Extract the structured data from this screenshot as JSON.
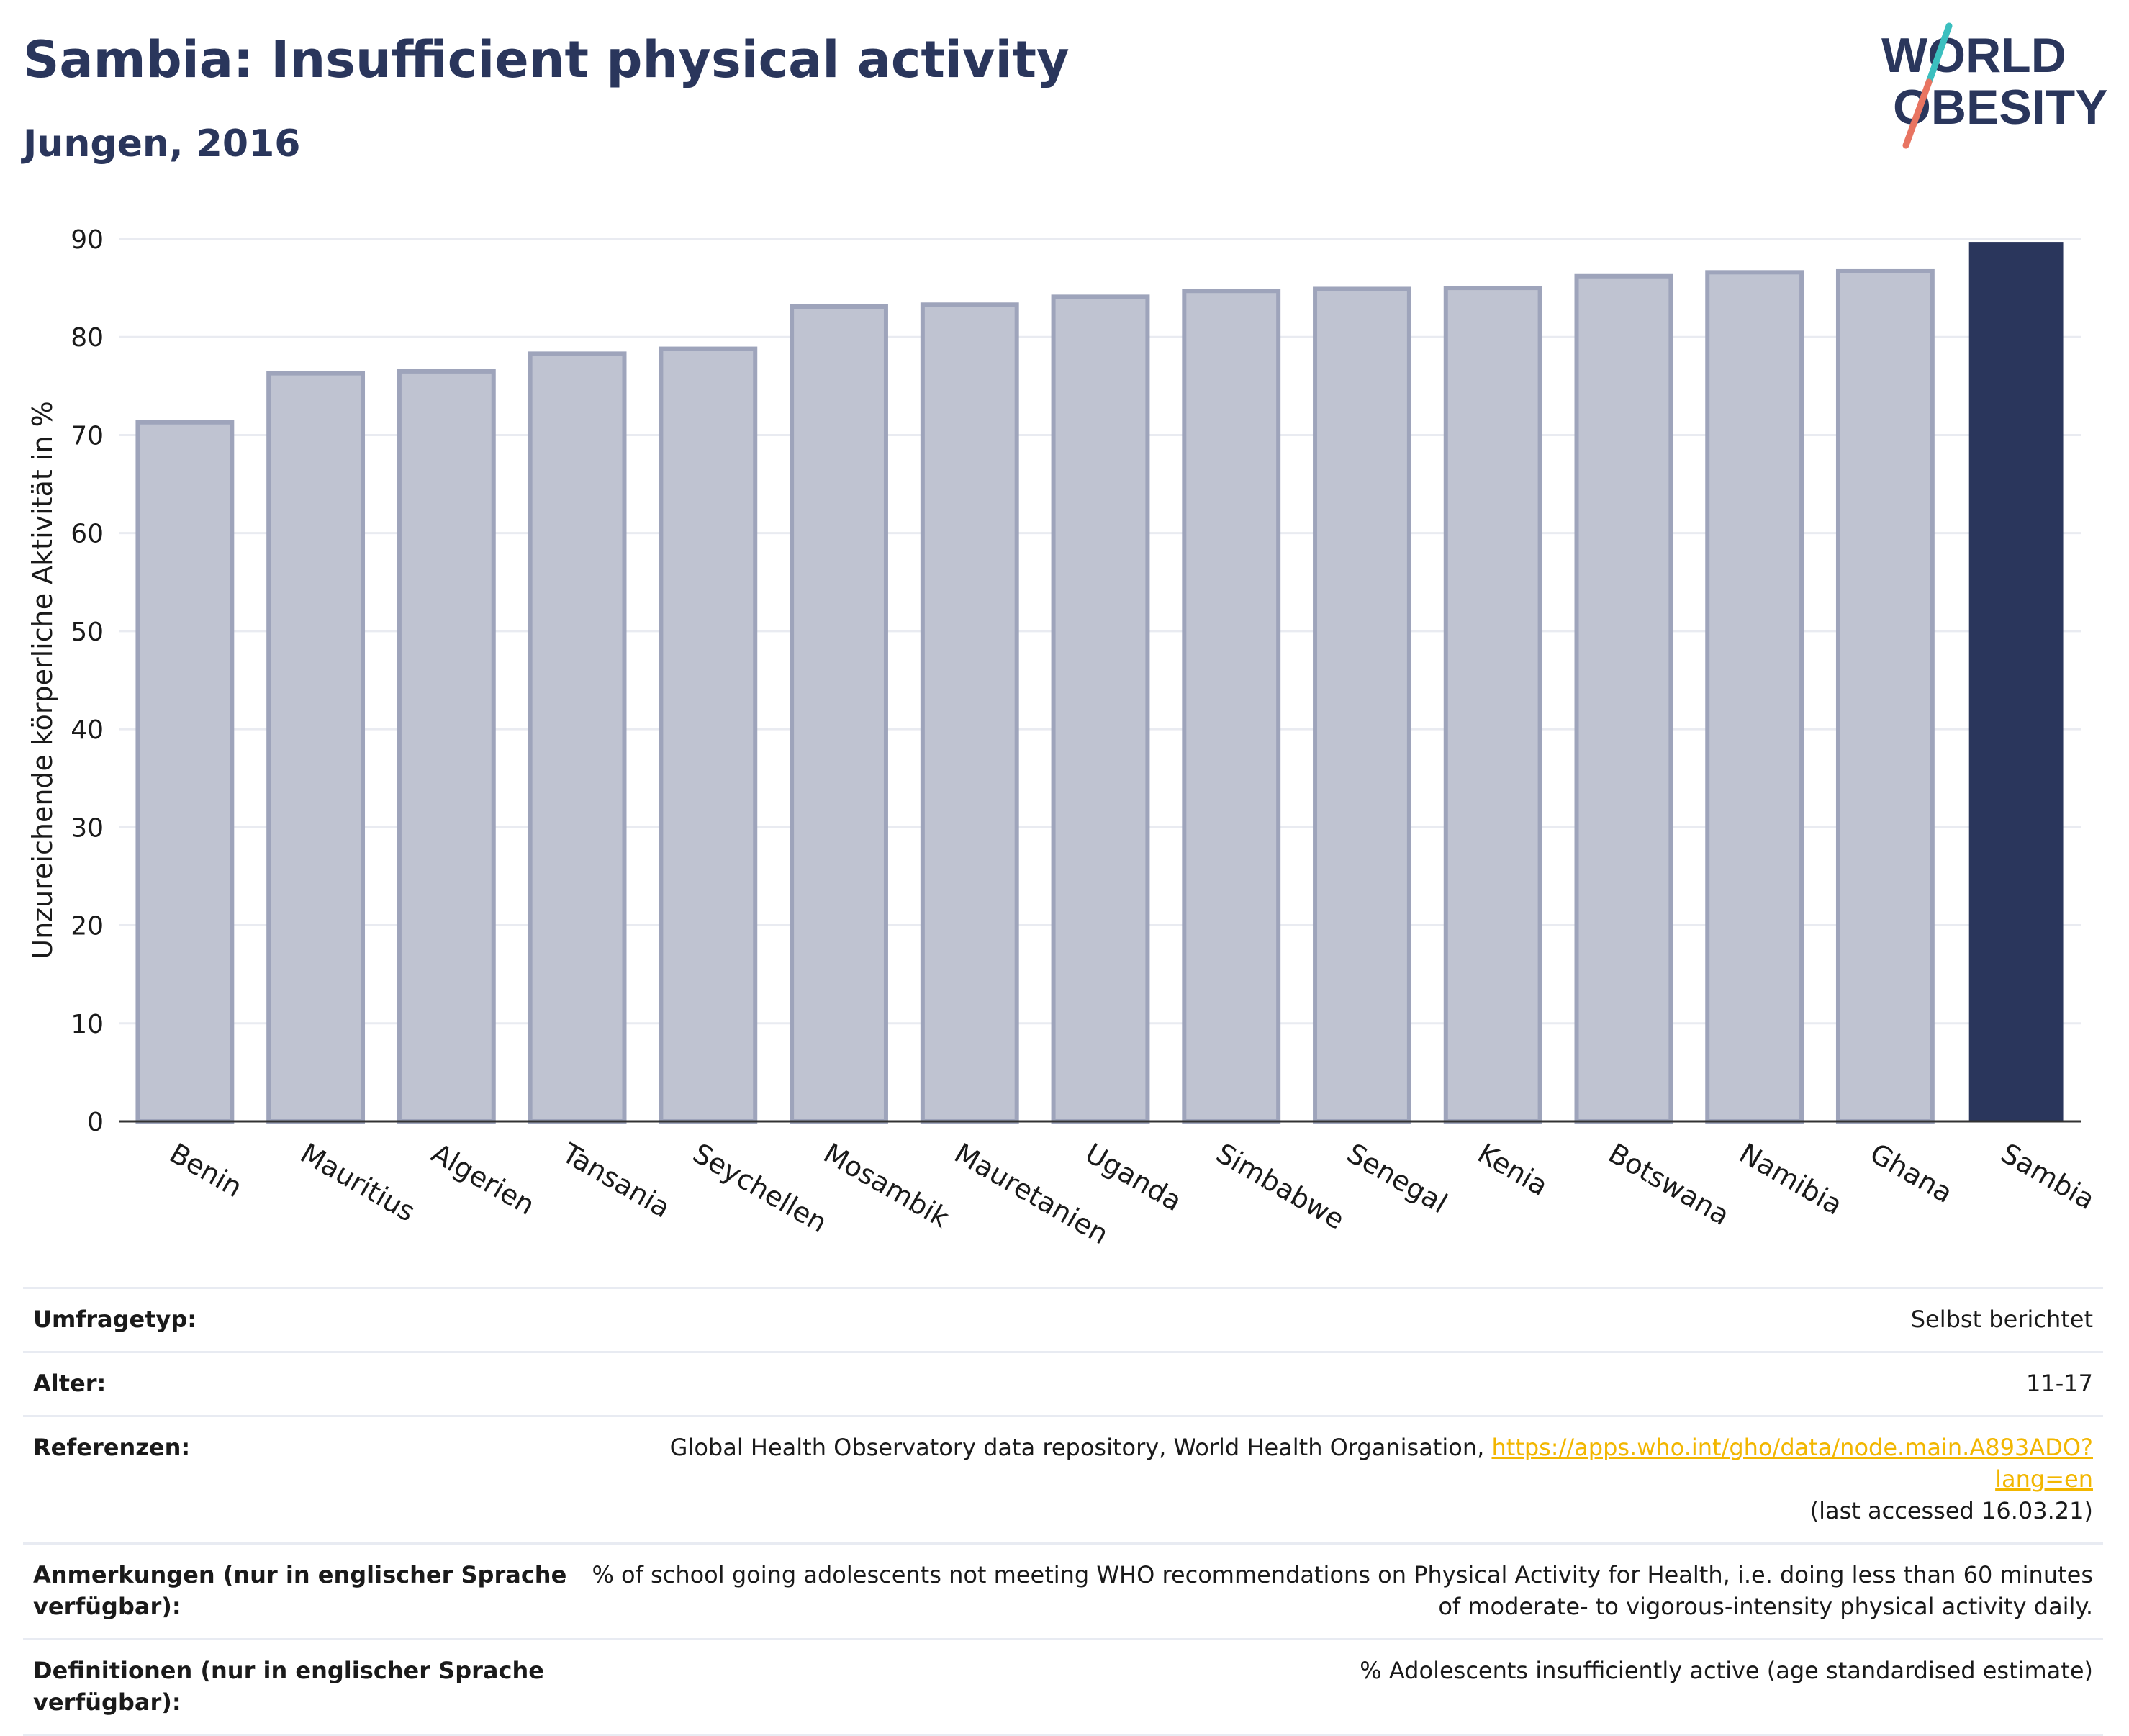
{
  "header": {
    "title": "Sambia: Insufficient physical activity",
    "subtitle": "Jungen, 2016"
  },
  "logo": {
    "line1": "WORLD",
    "line2": "OBESITY",
    "slash_colors": [
      "#3bbfbf",
      "#e87461"
    ]
  },
  "colors": {
    "title": "#2a365c",
    "bar_default_fill": "#bfc3d1",
    "bar_default_stroke": "#9ea4bb",
    "bar_highlight": "#2a365c",
    "link": "#f2b600"
  },
  "chart_data": {
    "type": "bar",
    "title": "Sambia: Insufficient physical activity",
    "subtitle": "Jungen, 2016",
    "xlabel": "",
    "ylabel": "Unzureichende körperliche Aktivität in %",
    "ylim": [
      0,
      90
    ],
    "yticks": [
      0,
      10,
      20,
      30,
      40,
      50,
      60,
      70,
      80,
      90
    ],
    "grid": true,
    "categories": [
      "Benin",
      "Mauritius",
      "Algerien",
      "Tansania",
      "Seychellen",
      "Mosambik",
      "Mauretanien",
      "Uganda",
      "Simbabwe",
      "Senegal",
      "Kenia",
      "Botswana",
      "Namibia",
      "Ghana",
      "Sambia"
    ],
    "values": [
      71.3,
      76.3,
      76.5,
      78.3,
      78.8,
      83.1,
      83.3,
      84.1,
      84.7,
      84.9,
      85.0,
      86.2,
      86.6,
      86.7,
      89.7
    ],
    "highlight": "Sambia"
  },
  "info": {
    "rows": [
      {
        "label": "Umfragetyp:",
        "value": "Selbst berichtet"
      },
      {
        "label": "Alter:",
        "value": "11-17"
      },
      {
        "label": "Referenzen:",
        "value_pre": "Global Health Observatory data repository, World Health Organisation, ",
        "link": "https://apps.who.int/gho/data/node.main.A893ADO?lang=en",
        "value_post": "(last accessed 16.03.21)"
      },
      {
        "label": "Anmerkungen (nur in englischer Sprache verfügbar):",
        "value": "% of school going adolescents not meeting WHO recommendations on Physical Activity for Health, i.e. doing less than 60 minutes of moderate- to vigorous-intensity physical activity daily."
      },
      {
        "label": "Definitionen (nur in englischer Sprache verfügbar):",
        "value": "% Adolescents insufficiently active (age standardised estimate)"
      }
    ]
  }
}
